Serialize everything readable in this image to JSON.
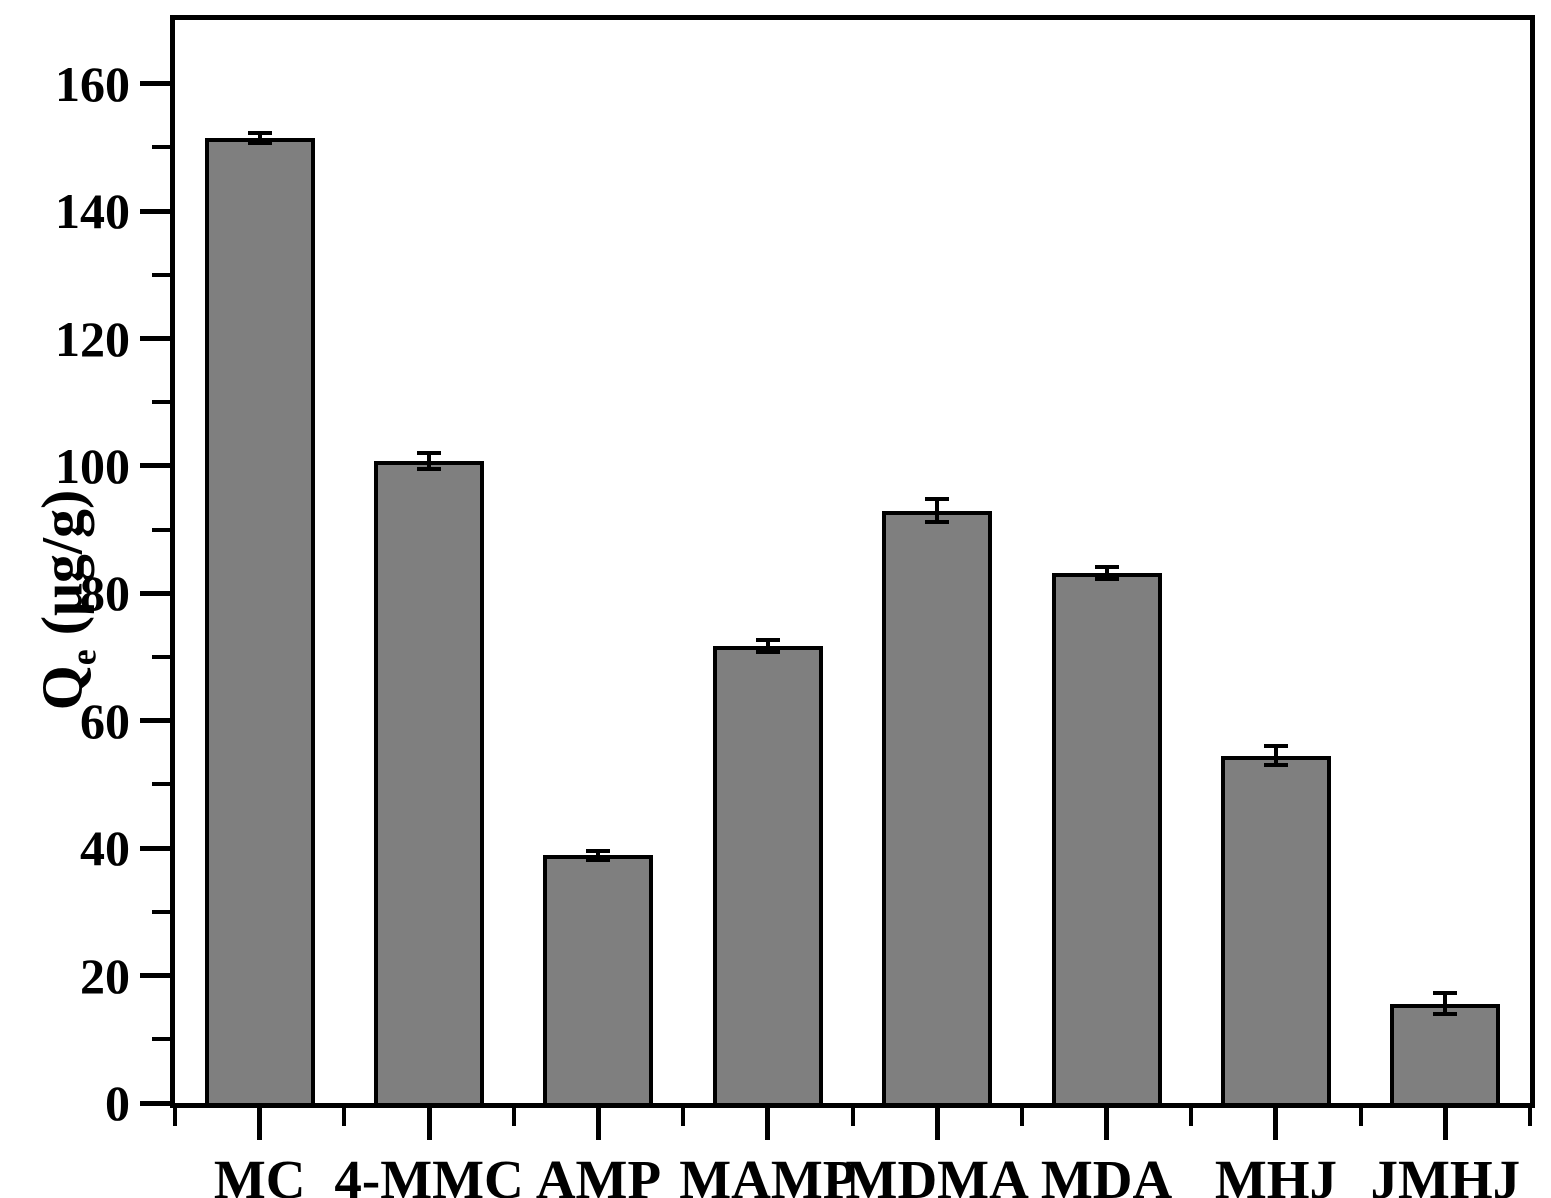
{
  "chart_data": {
    "type": "bar",
    "title": "",
    "categories": [
      "MC",
      "4-MMC",
      "AMP",
      "MAMP",
      "MDMA",
      "MDA",
      "MHJ",
      "JMHJ"
    ],
    "values": [
      151.5,
      100.8,
      38.9,
      71.7,
      93.0,
      83.2,
      54.5,
      15.6
    ],
    "errors": [
      0.8,
      1.3,
      0.7,
      0.9,
      1.8,
      0.9,
      1.5,
      1.6
    ],
    "series_name": "Qe",
    "xlabel": "",
    "ylabel": {
      "base": "Q",
      "subscript": "e",
      "unit": "(μg/g)"
    },
    "ylim": [
      0,
      170
    ],
    "yticks_major": [
      0,
      20,
      40,
      60,
      80,
      100,
      120,
      140,
      160
    ],
    "yticks_minor": [
      10,
      30,
      50,
      70,
      90,
      110,
      130,
      150
    ],
    "grid": false,
    "legend_position": "none",
    "bar_width_fraction": 0.65,
    "colors": {
      "bar_fill": "#7f7f7f",
      "bar_border": "#000000",
      "axis": "#000000",
      "background": "#ffffff",
      "text": "#000000"
    }
  }
}
